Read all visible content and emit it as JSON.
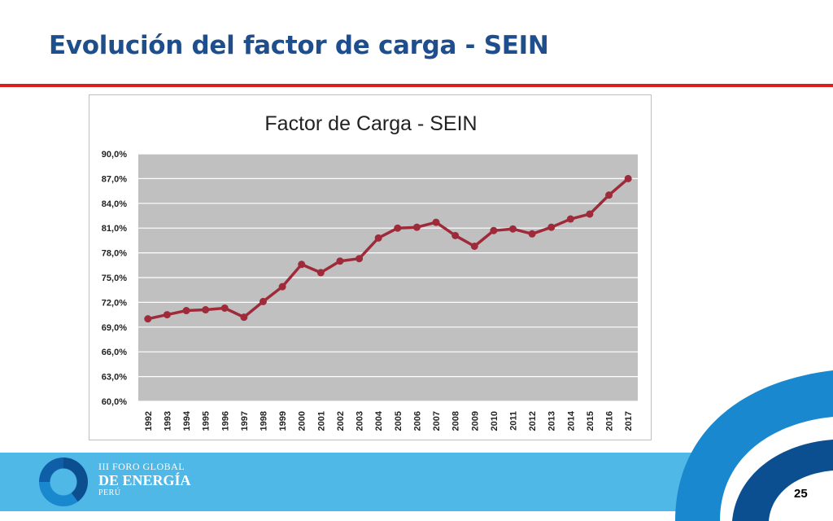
{
  "slide": {
    "title": "Evolución del factor de carga - SEIN",
    "page_number": "25"
  },
  "logo": {
    "line1": "III FORO GLOBAL",
    "line2": "DE ENERGÍA",
    "line3": "PERÚ"
  },
  "colors": {
    "title": "#1f4e8c",
    "rule": "#d9201f",
    "plot_background": "#c0c0c0",
    "series_line": "#9e2a3a",
    "footer": "#4fb8e6"
  },
  "chart_data": {
    "type": "line",
    "title": "Factor de Carga - SEIN",
    "xlabel": "",
    "ylabel": "",
    "grid": true,
    "ylim": [
      60.0,
      90.0
    ],
    "y_ticks": [
      "60,0%",
      "63,0%",
      "66,0%",
      "69,0%",
      "72,0%",
      "75,0%",
      "78,0%",
      "81,0%",
      "84,0%",
      "87,0%",
      "90,0%"
    ],
    "categories": [
      "1992",
      "1993",
      "1994",
      "1995",
      "1996",
      "1997",
      "1998",
      "1999",
      "2000",
      "2001",
      "2002",
      "2003",
      "2004",
      "2005",
      "2006",
      "2007",
      "2008",
      "2009",
      "2010",
      "2011",
      "2012",
      "2013",
      "2014",
      "2015",
      "2016",
      "2017"
    ],
    "series": [
      {
        "values": [
          70.0,
          70.5,
          71.0,
          71.1,
          71.3,
          70.2,
          72.1,
          73.9,
          76.6,
          75.6,
          77.0,
          77.3,
          79.8,
          81.0,
          81.1,
          81.7,
          80.1,
          78.8,
          80.7,
          80.9,
          80.3,
          81.1,
          82.1,
          82.7,
          85.0,
          87.0
        ]
      }
    ]
  }
}
